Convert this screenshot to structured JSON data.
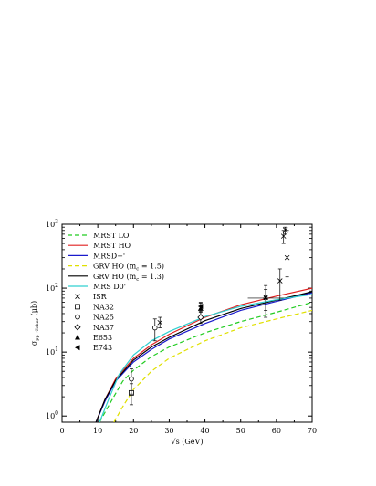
{
  "chart_data": {
    "type": "line",
    "xlabel": "√s (GeV)",
    "ylabel_main": "σ",
    "ylabel_sub": "pp→c̅cbar",
    "ylabel_unit": "(μb)",
    "xlim": [
      0,
      70
    ],
    "ylim": [
      0.8,
      1000
    ],
    "y_scale": "log",
    "x_ticks": [
      "0",
      "10",
      "20",
      "30",
      "40",
      "50",
      "60",
      "70"
    ],
    "y_ticks": [
      {
        "base": "10",
        "exp": "0",
        "value": 1
      },
      {
        "base": "10",
        "exp": "1",
        "value": 10
      },
      {
        "base": "10",
        "exp": "2",
        "value": 100
      },
      {
        "base": "10",
        "exp": "3",
        "value": 1000
      }
    ],
    "legend_placement": "top-left",
    "series": [
      {
        "name": "MRST LO",
        "color": "#22cc22",
        "dash": "5,3",
        "x": [
          10.5,
          14,
          17,
          20,
          25,
          30,
          40,
          50,
          60,
          70
        ],
        "y": [
          0.8,
          1.8,
          3.5,
          5.2,
          8.5,
          12,
          20,
          30,
          42,
          60
        ]
      },
      {
        "name": "MRST HO",
        "color": "#e02020",
        "dash": "",
        "x": [
          9.5,
          12,
          15,
          20,
          25,
          30,
          40,
          50,
          60,
          70
        ],
        "y": [
          0.8,
          1.8,
          3.8,
          8.0,
          13,
          19,
          35,
          55,
          75,
          100
        ]
      },
      {
        "name": "MRSD−'",
        "color": "#1a1acc",
        "dash": "",
        "x": [
          9.5,
          12,
          15,
          20,
          25,
          30,
          40,
          50,
          60,
          70
        ],
        "y": [
          0.8,
          1.7,
          3.5,
          7.0,
          11,
          16,
          28,
          45,
          62,
          85
        ]
      },
      {
        "name": "GRV HO (m",
        "name_sub": "c",
        "name_tail": " = 1.5)",
        "color": "#e0e000",
        "dash": "5,3",
        "x": [
          14.5,
          17,
          20,
          25,
          30,
          40,
          50,
          60,
          70
        ],
        "y": [
          0.8,
          1.4,
          2.6,
          5.0,
          8.0,
          15,
          24,
          33,
          45
        ]
      },
      {
        "name": "GRV HO (m",
        "name_sub": "c",
        "name_tail": " = 1.3)",
        "color": "#000000",
        "dash": "",
        "x": [
          9.5,
          12,
          15,
          20,
          25,
          30,
          40,
          50,
          60,
          70
        ],
        "y": [
          0.8,
          1.8,
          3.6,
          7.5,
          12,
          17,
          31,
          48,
          65,
          88
        ]
      },
      {
        "name": "MRS D0'",
        "color": "#30d0d0",
        "dash": "",
        "x": [
          10.5,
          13,
          16,
          20,
          25,
          30,
          40,
          50,
          60,
          70
        ],
        "y": [
          0.8,
          1.8,
          4.5,
          9.0,
          15,
          21,
          36,
          52,
          66,
          80
        ]
      }
    ],
    "data_points": [
      {
        "name": "ISR",
        "marker": "cross",
        "points": [
          {
            "x": 27.4,
            "y": 29,
            "lo": 24,
            "hi": 35
          },
          {
            "x": 57,
            "y": 72,
            "lo": 45,
            "hi": 95
          },
          {
            "x": 61,
            "y": 130,
            "lo": 65,
            "hi": 200
          },
          {
            "x": 62,
            "y": 650,
            "lo": 500,
            "hi": 800
          },
          {
            "x": 63,
            "y": 300,
            "lo": 150,
            "hi": 800
          },
          {
            "x": 62.5,
            "y": 820,
            "lo": 700,
            "hi": 900
          }
        ]
      },
      {
        "name": "NA32",
        "marker": "square",
        "points": [
          {
            "x": 19.4,
            "y": 2.3,
            "lo": 1.5,
            "hi": 3.2
          }
        ]
      },
      {
        "name": "NA25",
        "marker": "circle",
        "points": [
          {
            "x": 19.4,
            "y": 3.8,
            "lo": 2.2,
            "hi": 5.5
          },
          {
            "x": 26,
            "y": 24,
            "lo": 15,
            "hi": 33
          }
        ]
      },
      {
        "name": "NA37",
        "marker": "diamond",
        "points": [
          {
            "x": 38.8,
            "y": 35,
            "lo": 28,
            "hi": 42
          }
        ]
      },
      {
        "name": "E653",
        "marker": "triangle-up",
        "points": [
          {
            "x": 38.8,
            "y": 48,
            "lo": 38,
            "hi": 58
          }
        ]
      },
      {
        "name": "E743",
        "marker": "triangle-left",
        "points": [
          {
            "x": 38.8,
            "y": 52,
            "lo": 43,
            "hi": 60
          }
        ]
      }
    ],
    "extra_points": [
      {
        "marker": "star",
        "x": 57,
        "y": 70,
        "lo": 35,
        "hi": 110,
        "xlo": 52,
        "xhi": 62
      }
    ]
  }
}
